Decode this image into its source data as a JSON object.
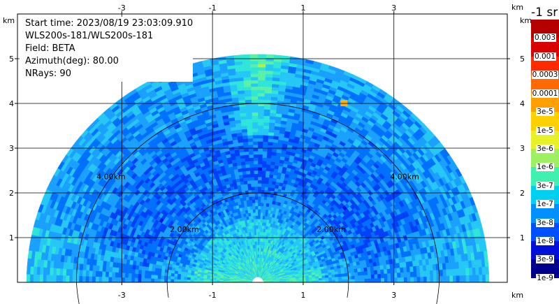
{
  "info": {
    "start_time": "Start time: 2023/08/19 23:03:09.910",
    "instrument": "WLS200s-181/WLS200s-181",
    "field": "Field: BETA",
    "azimuth": "Azimuth(deg): 80.00",
    "nrays": "NRays: 90"
  },
  "axes": {
    "unit": "km",
    "x_ticks": [
      -3,
      -1,
      1,
      3
    ],
    "y_ticks": [
      1,
      2,
      3,
      4,
      5
    ],
    "xlim": [
      -5.3,
      5.5
    ],
    "ylim": [
      0,
      6
    ]
  },
  "range_rings": [
    {
      "radius_km": 2.0,
      "label": "2.00km"
    },
    {
      "radius_km": 4.0,
      "label": "4.00km"
    }
  ],
  "colorbar": {
    "title": "-1 sr",
    "labels": [
      "0.003",
      "0.001",
      "0.0003",
      "0.0001",
      "3e-5",
      "1e-5",
      "3e-6",
      "1e-6",
      "3e-7",
      "1e-7",
      "3e-8",
      "1e-8",
      "3e-9",
      "1e-9"
    ],
    "colors": [
      "#b40000",
      "#d80000",
      "#ff2a00",
      "#ff6a00",
      "#ffa000",
      "#ffd000",
      "#e8f028",
      "#9ef060",
      "#40f0b0",
      "#00d0f0",
      "#0090ff",
      "#0050ff",
      "#0010d8",
      "#00008c"
    ]
  },
  "chart_data": {
    "type": "heatmap",
    "title": "",
    "xlabel": "km",
    "ylabel": "km",
    "max_range_km": 5.05,
    "xlim": [
      -5.3,
      5.5
    ],
    "ylim": [
      0,
      6
    ]
  }
}
